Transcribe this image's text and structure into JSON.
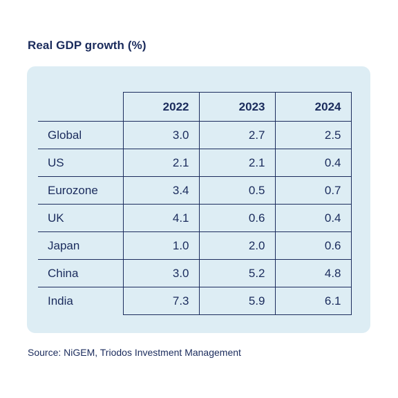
{
  "chart_data": {
    "type": "table",
    "title": "Real GDP growth (%)",
    "columns": [
      "2022",
      "2023",
      "2024"
    ],
    "rows": [
      {
        "label": "Global",
        "values": [
          "3.0",
          "2.7",
          "2.5"
        ]
      },
      {
        "label": "US",
        "values": [
          "2.1",
          "2.1",
          "0.4"
        ]
      },
      {
        "label": "Eurozone",
        "values": [
          "3.4",
          "0.5",
          "0.7"
        ]
      },
      {
        "label": "UK",
        "values": [
          "4.1",
          "0.6",
          "0.4"
        ]
      },
      {
        "label": "Japan",
        "values": [
          "1.0",
          "2.0",
          "0.6"
        ]
      },
      {
        "label": "China",
        "values": [
          "3.0",
          "5.2",
          "4.8"
        ]
      },
      {
        "label": "India",
        "values": [
          "7.3",
          "5.9",
          "6.1"
        ]
      }
    ],
    "source": "Source: NiGEM, Triodos Investment Management"
  },
  "colors": {
    "text": "#1a2b5c",
    "panel": "#ddedf4",
    "background": "#ffffff"
  }
}
